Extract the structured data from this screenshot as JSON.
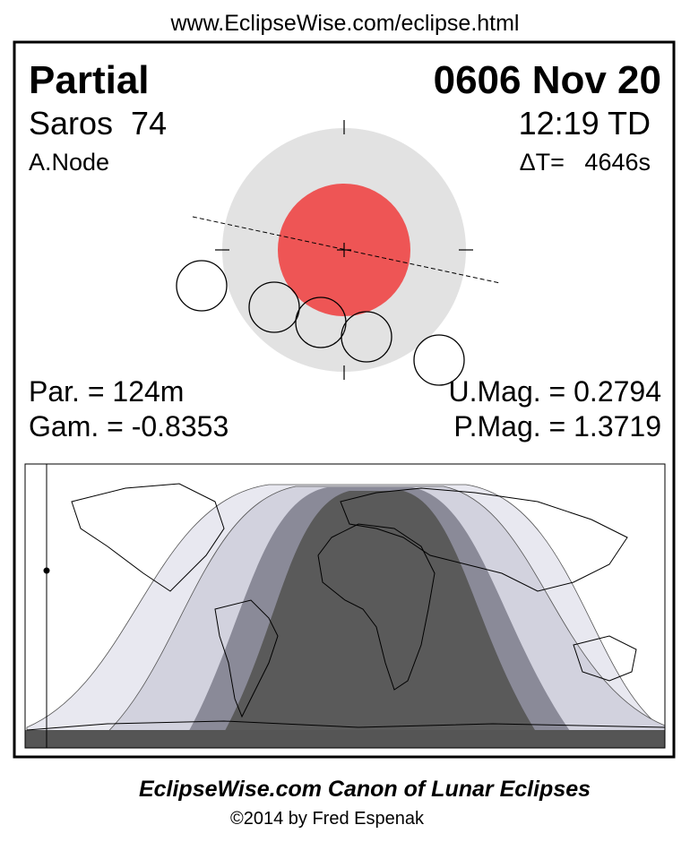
{
  "header": {
    "url": "www.EclipseWise.com/eclipse.html"
  },
  "eclipse": {
    "type": "Partial",
    "date": "0606 Nov 20",
    "saros": "Saros  74",
    "time": "12:19 TD",
    "node": "A.Node",
    "delta_t": "ΔT=   4646s",
    "duration": "Par. = 124m",
    "umbral_magnitude": "U.Mag. = 0.2794",
    "gamma": "Gam. = -0.8353",
    "penumbral_magnitude": "P.Mag. = 1.3719"
  },
  "footer": {
    "title": "EclipseWise.com Canon of Lunar Eclipses",
    "copyright": "©2014 by Fred Espenak"
  }
}
